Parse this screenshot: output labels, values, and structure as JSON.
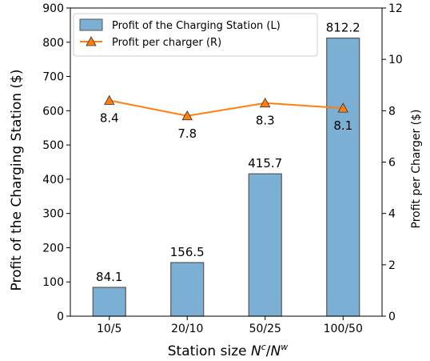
{
  "chart_data": {
    "type": "bar",
    "categories": [
      "10/5",
      "20/10",
      "50/25",
      "100/50"
    ],
    "xlabel_prefix": "Station size ",
    "xlabel_sup1": "c",
    "xlabel_sup2": "w",
    "ylabel_left": "Profit of the Charging Station ($)",
    "ylabel_right": "Profit per Charger ($)",
    "ylim_left": [
      0,
      900
    ],
    "yticks_left": [
      0,
      100,
      200,
      300,
      400,
      500,
      600,
      700,
      800,
      900
    ],
    "ylim_right": [
      0,
      12
    ],
    "yticks_right": [
      0,
      2,
      4,
      6,
      8,
      10,
      12
    ],
    "series": [
      {
        "name": "Profit of the Charging Station (L)",
        "type": "bar",
        "axis": "left",
        "values": [
          84.1,
          156.5,
          415.7,
          812.2
        ],
        "labels": [
          "84.1",
          "156.5",
          "415.7",
          "812.2"
        ],
        "color": "#7bafd4",
        "edge_color": "#555555"
      },
      {
        "name": "Profit per charger (R)",
        "type": "line",
        "axis": "right",
        "marker": "triangle",
        "values": [
          8.4,
          7.8,
          8.3,
          8.1
        ],
        "labels": [
          "8.4",
          "7.8",
          "8.3",
          "8.1"
        ],
        "color": "#ff7f0e",
        "marker_edge": "#333333"
      }
    ],
    "legend_position": "top-left",
    "grid": false
  }
}
